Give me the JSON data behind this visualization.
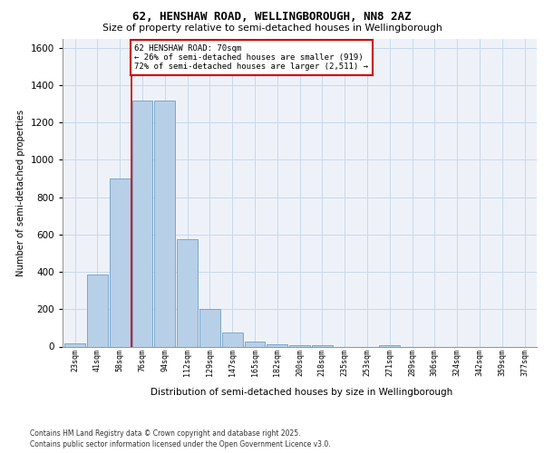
{
  "title1": "62, HENSHAW ROAD, WELLINGBOROUGH, NN8 2AZ",
  "title2": "Size of property relative to semi-detached houses in Wellingborough",
  "xlabel": "Distribution of semi-detached houses by size in Wellingborough",
  "ylabel": "Number of semi-detached properties",
  "categories": [
    "23sqm",
    "41sqm",
    "58sqm",
    "76sqm",
    "94sqm",
    "112sqm",
    "129sqm",
    "147sqm",
    "165sqm",
    "182sqm",
    "200sqm",
    "218sqm",
    "235sqm",
    "253sqm",
    "271sqm",
    "289sqm",
    "306sqm",
    "324sqm",
    "342sqm",
    "359sqm",
    "377sqm"
  ],
  "values": [
    15,
    385,
    900,
    1320,
    1320,
    575,
    200,
    75,
    25,
    12,
    8,
    5,
    0,
    0,
    8,
    0,
    0,
    0,
    0,
    0,
    0
  ],
  "bar_color": "#b8cfe8",
  "bar_edge_color": "#6a9fc8",
  "property_line_x": 2.5,
  "annotation_text": "62 HENSHAW ROAD: 70sqm\n← 26% of semi-detached houses are smaller (919)\n72% of semi-detached houses are larger (2,511) →",
  "ylim": [
    0,
    1650
  ],
  "yticks": [
    0,
    200,
    400,
    600,
    800,
    1000,
    1200,
    1400,
    1600
  ],
  "grid_color": "#c8d8ec",
  "bg_color": "#eef2f8",
  "footer": "Contains HM Land Registry data © Crown copyright and database right 2025.\nContains public sector information licensed under the Open Government Licence v3.0."
}
